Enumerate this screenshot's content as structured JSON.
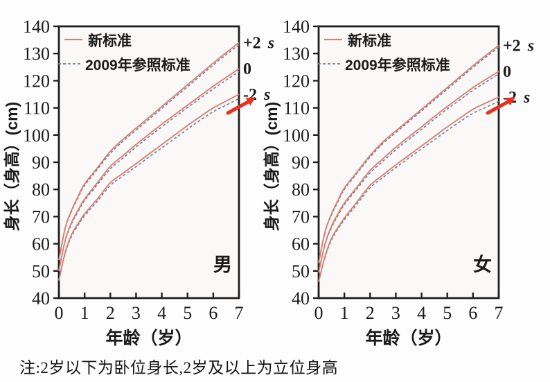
{
  "page": {
    "note": "注:2岁以下为卧位身长,2岁及以上为立位身高"
  },
  "colors": {
    "new_standard": "#d98074",
    "ref_2009": "#6f7b9d",
    "axis": "#1f1f1f",
    "text": "#1a1a1a",
    "arrow": "#e63222",
    "plot_bg": "#faf9f7"
  },
  "legend": {
    "new_label": "新标准",
    "ref_label": "2009年参照标准"
  },
  "axes": {
    "y_title": "身长（身高）(cm)",
    "x_title": "年龄（岁）",
    "y_ticks": [
      40,
      50,
      60,
      70,
      80,
      90,
      100,
      110,
      120,
      130,
      140
    ],
    "x_ticks": [
      0,
      1,
      2,
      3,
      4,
      5,
      6,
      7
    ],
    "ylim": [
      40,
      140
    ],
    "xlim": [
      0,
      7
    ]
  },
  "curve_labels": [
    {
      "text": "+2",
      "suffix": "s"
    },
    {
      "text": "0",
      "suffix": ""
    },
    {
      "text": "-2",
      "suffix": "s"
    }
  ],
  "chart_data": [
    {
      "type": "line",
      "panel_label": "男",
      "xlabel": "年龄（岁）",
      "ylabel": "身长（身高）(cm)",
      "xlim": [
        0,
        7
      ],
      "ylim": [
        40,
        140
      ],
      "x": [
        0,
        0.25,
        0.5,
        0.75,
        1,
        1.5,
        2,
        2.5,
        3,
        3.5,
        4,
        4.5,
        5,
        5.5,
        6,
        6.5,
        7
      ],
      "series": [
        {
          "name": "2009年参照标准 +2s",
          "style": "dashed",
          "values": [
            54,
            65.7,
            72.1,
            77,
            81.4,
            87.4,
            93.3,
            97.8,
            101.8,
            105.8,
            109.8,
            113.8,
            117.8,
            121.8,
            125.8,
            129.6,
            133.2
          ]
        },
        {
          "name": "2009年参照标准 0",
          "style": "dashed",
          "values": [
            50,
            61.2,
            67.5,
            71.9,
            75.9,
            81.8,
            87.6,
            91.6,
            95.6,
            99.4,
            103,
            106.6,
            110.1,
            113.6,
            117,
            120.2,
            123.4
          ]
        },
        {
          "name": "2009年参照标准 -2s",
          "style": "dashed",
          "values": [
            46.5,
            56.6,
            62.9,
            66.9,
            70.3,
            75.7,
            81.5,
            85,
            88.4,
            91.9,
            95.3,
            98.7,
            102.2,
            105.5,
            108.6,
            111,
            113.4
          ]
        },
        {
          "name": "新标准 +2s",
          "style": "solid",
          "values": [
            54,
            66,
            72.5,
            77.5,
            82,
            88,
            94,
            98.5,
            102.5,
            106.5,
            110.5,
            114.5,
            118.5,
            122.5,
            126.5,
            130.3,
            134
          ]
        },
        {
          "name": "新标准 0",
          "style": "solid",
          "values": [
            50,
            61.5,
            68,
            72.5,
            76.5,
            82.5,
            88.5,
            92.5,
            96.5,
            100.3,
            104,
            107.5,
            111,
            114.5,
            118,
            121.2,
            124.4
          ]
        },
        {
          "name": "新标准 -2s",
          "style": "solid",
          "values": [
            46.5,
            57,
            63.5,
            67.5,
            71,
            76.5,
            82.5,
            86,
            89.5,
            93,
            96.5,
            100,
            103.5,
            106.8,
            110,
            112.5,
            115
          ]
        }
      ],
      "annotation": "red arrow pointing at -2s curve near age 7"
    },
    {
      "type": "line",
      "panel_label": "女",
      "xlabel": "年龄（岁）",
      "ylabel": "身长（身高）(cm)",
      "xlim": [
        0,
        7
      ],
      "ylim": [
        40,
        140
      ],
      "x": [
        0,
        0.25,
        0.5,
        0.75,
        1,
        1.5,
        2,
        2.5,
        3,
        3.5,
        4,
        4.5,
        5,
        5.5,
        6,
        6.5,
        7
      ],
      "series": [
        {
          "name": "2009年参照标准 +2s",
          "style": "dashed",
          "values": [
            53,
            64.2,
            70.6,
            75.5,
            80,
            86,
            91.9,
            96.9,
            100.9,
            104.9,
            108.9,
            112.9,
            116.9,
            120.9,
            124.9,
            128.7,
            132.3
          ]
        },
        {
          "name": "2009年参照标准 0",
          "style": "dashed",
          "values": [
            49.5,
            59.7,
            66,
            70.4,
            74.4,
            80.3,
            86.1,
            90.4,
            94.6,
            98.4,
            102.1,
            105.9,
            109.6,
            113,
            116.5,
            119.5,
            122.5
          ]
        },
        {
          "name": "2009年参照标准 -2s",
          "style": "dashed",
          "values": [
            46,
            55.1,
            61.4,
            65.4,
            68.8,
            74.7,
            80.6,
            84.4,
            88,
            91.5,
            94.9,
            98.3,
            101.7,
            105,
            108,
            110.2,
            112.4
          ]
        },
        {
          "name": "新标准 +2s",
          "style": "solid",
          "values": [
            53,
            64.5,
            71,
            76,
            80.5,
            86.5,
            92.5,
            97.5,
            101.5,
            105.5,
            109.5,
            113.5,
            117.5,
            121.5,
            125.5,
            129.3,
            133
          ]
        },
        {
          "name": "新标准 0",
          "style": "solid",
          "values": [
            49.5,
            60,
            66.5,
            71,
            75,
            81,
            87,
            91.3,
            95.5,
            99.3,
            103,
            106.8,
            110.5,
            114,
            117.5,
            120.5,
            123.4
          ]
        },
        {
          "name": "新标准 -2s",
          "style": "solid",
          "values": [
            46,
            55.5,
            62,
            66,
            69.5,
            75.5,
            81.5,
            85.3,
            89,
            92.5,
            96,
            99.5,
            103,
            106.3,
            109.5,
            111.8,
            114
          ]
        }
      ],
      "annotation": "red arrow pointing at -2s curve near age 7"
    }
  ]
}
